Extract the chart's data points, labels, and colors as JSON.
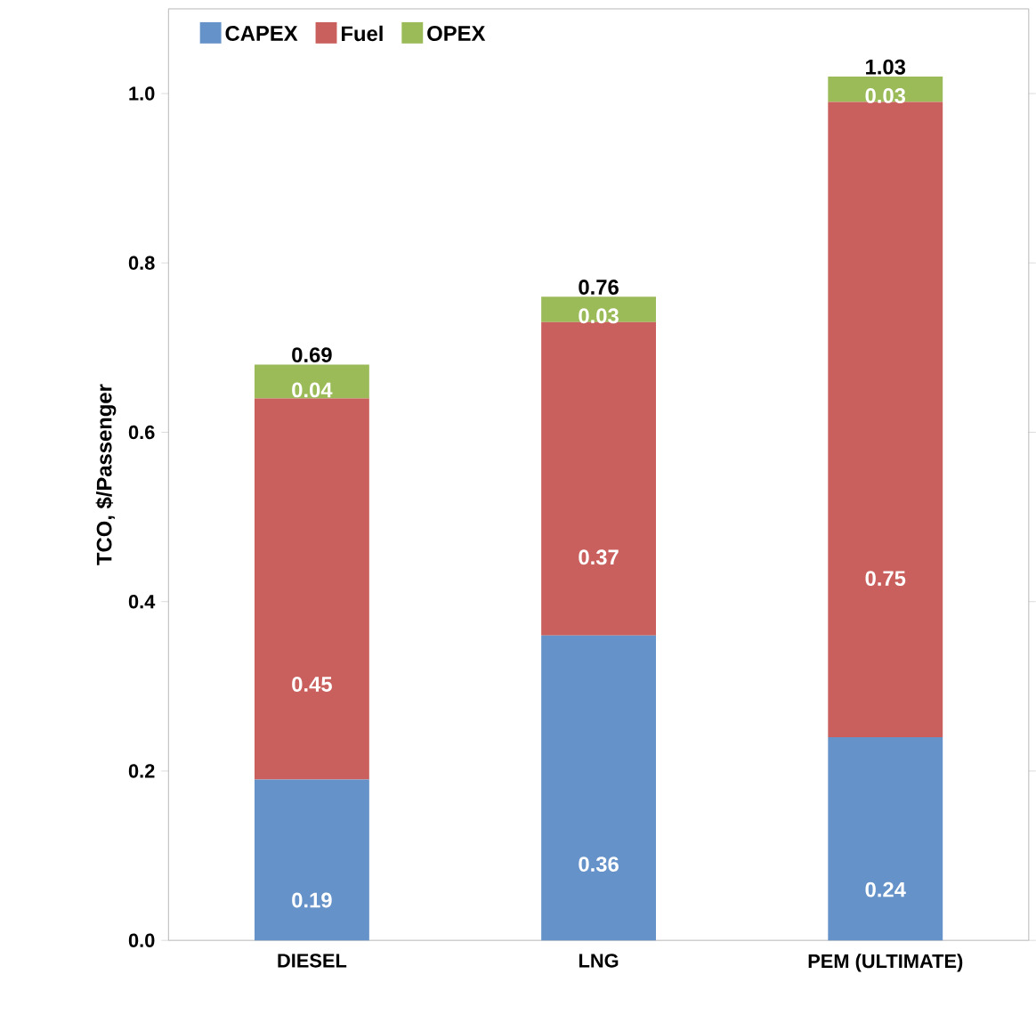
{
  "chart_data": {
    "type": "bar",
    "stacked": true,
    "ylabel": "TCO, $/Passenger",
    "categories": [
      "DIESEL",
      "LNG",
      "PEM (ULTIMATE)"
    ],
    "series": [
      {
        "name": "CAPEX",
        "color": "#6592c8",
        "values": [
          0.19,
          0.36,
          0.24
        ]
      },
      {
        "name": "Fuel",
        "color": "#c9605d",
        "values": [
          0.45,
          0.37,
          0.75
        ]
      },
      {
        "name": "OPEX",
        "color": "#9bbb59",
        "values": [
          0.04,
          0.03,
          0.03
        ]
      }
    ],
    "totals": [
      "0.69",
      "0.76",
      "1.03"
    ],
    "ylim": [
      0,
      1.1
    ],
    "yticks": [
      {
        "value": 0,
        "label": "0.0"
      },
      {
        "value": 0.2,
        "label": "0.2"
      },
      {
        "value": 0.4,
        "label": "0.4"
      },
      {
        "value": 0.6,
        "label": "0.6"
      },
      {
        "value": 0.8,
        "label": "0.8"
      },
      {
        "value": 1.0,
        "label": "1.0"
      }
    ],
    "data_labels": true,
    "legend": "top left",
    "grid": false
  }
}
